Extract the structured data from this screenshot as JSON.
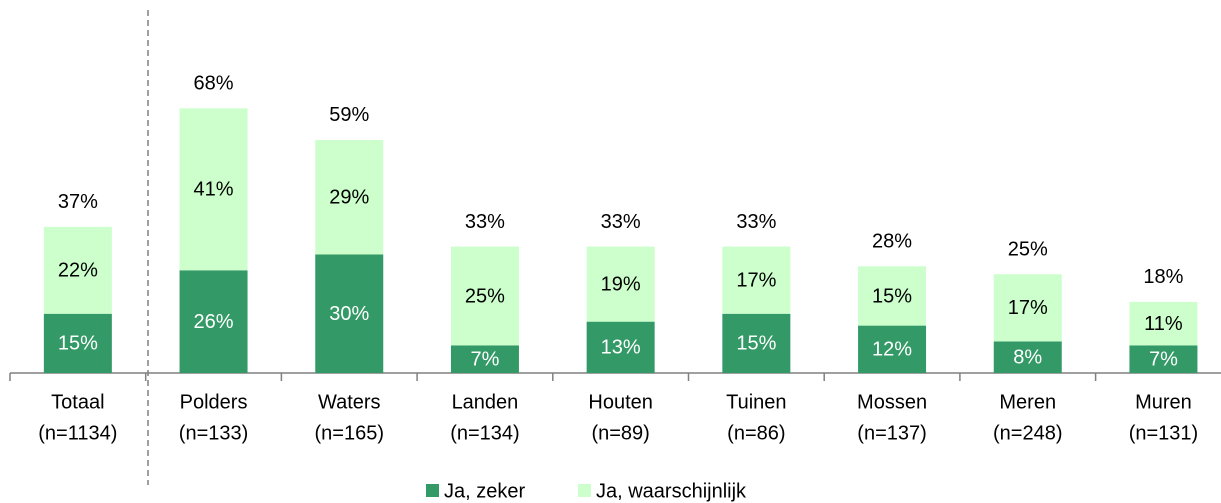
{
  "chart_data": {
    "type": "stacked_bar",
    "categories": [
      "Totaal",
      "Polders",
      "Waters",
      "Landen",
      "Houten",
      "Tuinen",
      "Mossen",
      "Meren",
      "Muren"
    ],
    "category_notes": [
      "(n=1134)",
      "(n=133)",
      "(n=165)",
      "(n=134)",
      "(n=89)",
      "(n=86)",
      "(n=137)",
      "(n=248)",
      "(n=131)"
    ],
    "series": [
      {
        "name": "Ja, zeker",
        "color": "#339966",
        "label_color": "#ffffff",
        "values": [
          15,
          26,
          30,
          7,
          13,
          15,
          12,
          8,
          7
        ],
        "value_labels": [
          "15%",
          "26%",
          "30%",
          "7%",
          "13%",
          "15%",
          "12%",
          "8%",
          "7%"
        ]
      },
      {
        "name": "Ja, waarschijnlijk",
        "color": "#ccffcc",
        "label_color": "#000000",
        "values": [
          22,
          41,
          29,
          25,
          19,
          17,
          15,
          17,
          11
        ],
        "value_labels": [
          "22%",
          "41%",
          "29%",
          "25%",
          "19%",
          "17%",
          "15%",
          "17%",
          "11%"
        ]
      }
    ],
    "totals": [
      37,
      68,
      59,
      33,
      33,
      33,
      28,
      25,
      18
    ],
    "total_labels": [
      "37%",
      "68%",
      "59%",
      "33%",
      "33%",
      "33%",
      "28%",
      "25%",
      "18%"
    ],
    "legend": "bottom"
  }
}
